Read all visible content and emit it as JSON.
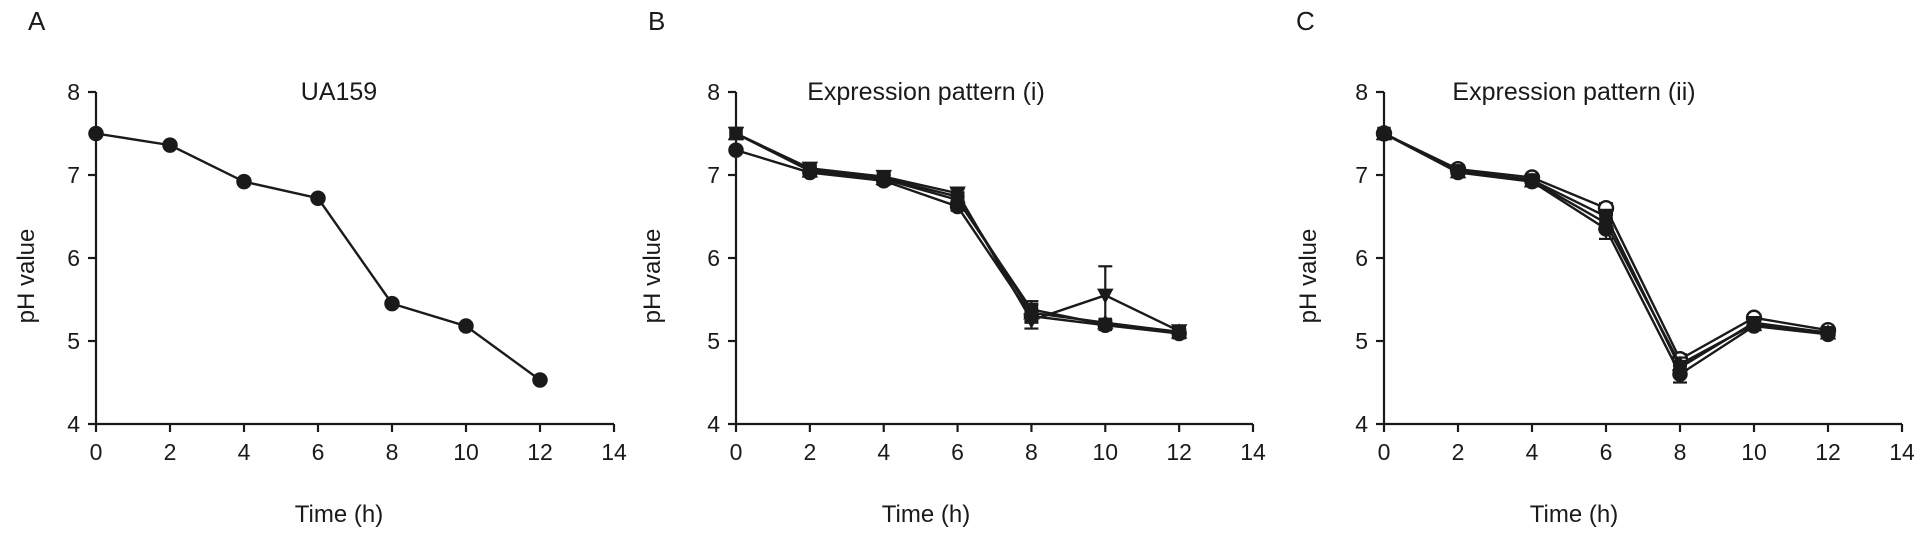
{
  "chart_data": [
    {
      "type": "line",
      "panel_label": "A",
      "title": "UA159",
      "xlabel": "Time (h)",
      "ylabel": "pH value",
      "xlim": [
        0,
        14
      ],
      "ylim": [
        4,
        8
      ],
      "xticks": [
        0,
        2,
        4,
        6,
        8,
        10,
        12,
        14
      ],
      "yticks": [
        4,
        5,
        6,
        7,
        8
      ],
      "x": [
        0,
        2,
        4,
        6,
        8,
        10,
        12
      ],
      "series": [
        {
          "values": [
            7.5,
            7.36,
            6.92,
            6.72,
            5.45,
            5.18,
            4.53
          ],
          "marker": "circle"
        }
      ],
      "grid": false
    },
    {
      "type": "line",
      "panel_label": "B",
      "title": "Expression pattern (i)",
      "xlabel": "Time (h)",
      "ylabel": "pH value",
      "xlim": [
        0,
        14
      ],
      "ylim": [
        4,
        8
      ],
      "xticks": [
        0,
        2,
        4,
        6,
        8,
        10,
        12,
        14
      ],
      "yticks": [
        4,
        5,
        6,
        7,
        8
      ],
      "x": [
        0,
        2,
        4,
        6,
        8,
        10,
        12
      ],
      "series": [
        {
          "values": [
            7.3,
            7.03,
            6.93,
            6.62,
            5.3,
            5.19,
            5.09
          ],
          "marker": "circle",
          "errors": [
            0,
            0.03,
            0.03,
            0.05,
            0.08,
            0.03,
            0.03
          ]
        },
        {
          "values": [
            7.5,
            7.06,
            6.95,
            6.7,
            5.38,
            5.2,
            5.1
          ],
          "marker": "square",
          "errors": [
            0,
            0.03,
            0.04,
            0.05,
            0.1,
            0.03,
            0.03
          ]
        },
        {
          "values": [
            7.5,
            7.08,
            6.98,
            6.78,
            5.25,
            5.55,
            5.12
          ],
          "marker": "triangle-down",
          "errors": [
            0,
            0.03,
            0.04,
            0.05,
            0.1,
            0.35,
            0.03
          ]
        },
        {
          "values": [
            7.5,
            7.05,
            6.96,
            6.74,
            5.34,
            5.22,
            5.11
          ],
          "marker": "triangle-up",
          "errors": [
            0,
            0.03,
            0.04,
            0.05,
            0.1,
            0.03,
            0.03
          ]
        }
      ],
      "grid": false
    },
    {
      "type": "line",
      "panel_label": "C",
      "title": "Expression pattern (ii)",
      "xlabel": "Time (h)",
      "ylabel": "pH value",
      "xlim": [
        0,
        14
      ],
      "ylim": [
        4,
        8
      ],
      "xticks": [
        0,
        2,
        4,
        6,
        8,
        10,
        12,
        14
      ],
      "yticks": [
        4,
        5,
        6,
        7,
        8
      ],
      "x": [
        0,
        2,
        4,
        6,
        8,
        10,
        12
      ],
      "series": [
        {
          "values": [
            7.5,
            7.03,
            6.92,
            6.35,
            4.6,
            5.18,
            5.08
          ],
          "marker": "circle",
          "errors": [
            0,
            0.03,
            0.03,
            0.12,
            0.1,
            0.03,
            0.03
          ]
        },
        {
          "values": [
            7.5,
            7.07,
            6.97,
            6.6,
            4.78,
            5.28,
            5.13
          ],
          "marker": "circle-open",
          "errors": [
            0,
            0.03,
            0.03,
            0.06,
            0.06,
            0.03,
            0.03
          ]
        },
        {
          "values": [
            7.5,
            7.05,
            6.94,
            6.5,
            4.68,
            5.22,
            5.1
          ],
          "marker": "square",
          "errors": [
            0,
            0.03,
            0.03,
            0.08,
            0.08,
            0.03,
            0.03
          ]
        },
        {
          "values": [
            7.5,
            7.04,
            6.93,
            6.42,
            4.72,
            5.2,
            5.1
          ],
          "marker": "triangle-up",
          "errors": [
            0,
            0.03,
            0.03,
            0.1,
            0.08,
            0.03,
            0.03
          ]
        }
      ],
      "grid": false
    }
  ]
}
